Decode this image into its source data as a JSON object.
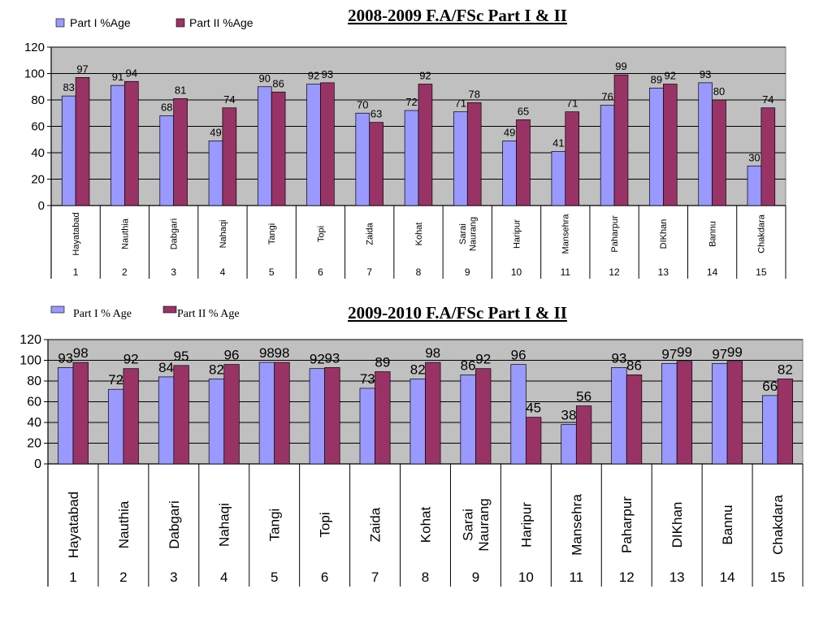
{
  "chart_data": [
    {
      "type": "bar",
      "title": "2008-2009  F.A/FSc Part I & II",
      "categories": [
        "Hayatabad",
        "Nauthia",
        "Dabgari",
        "Nahaqi",
        "Tangi",
        "Topi",
        "Zaida",
        "Kohat",
        "Sarai Naurang",
        "Haripur",
        "Mansehra",
        "Paharpur",
        "DIKhan",
        "Bannu",
        "Chakdara"
      ],
      "category_index": [
        "1",
        "2",
        "3",
        "4",
        "5",
        "6",
        "7",
        "8",
        "9",
        "10",
        "11",
        "12",
        "13",
        "14",
        "15"
      ],
      "series": [
        {
          "name": "Part I %Age",
          "color": "#9999ff",
          "values": [
            83,
            91,
            68,
            49,
            90,
            92,
            70,
            72,
            71,
            49,
            41,
            76,
            89,
            93,
            30
          ],
          "labels": [
            "83",
            "91",
            "68",
            "49",
            "90",
            "92",
            "70",
            "72",
            "71",
            "49",
            "41",
            "76",
            "89",
            "93",
            "30"
          ]
        },
        {
          "name": "Part II %Age",
          "color": "#993366",
          "values": [
            97,
            94,
            81,
            74,
            86,
            93,
            63,
            92,
            78,
            65,
            71,
            99,
            92,
            80,
            74
          ],
          "labels": [
            "97",
            "94",
            "81",
            "74",
            "86",
            "93",
            "63",
            "92",
            "78",
            "65",
            "71",
            "99",
            "92",
            "80",
            "74"
          ]
        }
      ],
      "ylim": [
        0,
        120
      ],
      "yticks": [
        "0",
        "20",
        "40",
        "60",
        "80",
        "100",
        "120"
      ],
      "grid": true,
      "legend": "top-left",
      "plot_background": "#c0c0c0"
    },
    {
      "type": "bar",
      "title": "2009-2010  F.A/FSc Part I & II",
      "categories": [
        "Hayatabad",
        "Nauthia",
        "Dabgari",
        "Nahaqi",
        "Tangi",
        "Topi",
        "Zaida",
        "Kohat",
        "Sarai Naurang",
        "Haripur",
        "Mansehra",
        "Paharpur",
        "DIKhan",
        "Bannu",
        "Chakdara"
      ],
      "category_index": [
        "1",
        "2",
        "3",
        "4",
        "5",
        "6",
        "7",
        "8",
        "9",
        "10",
        "11",
        "12",
        "13",
        "14",
        "15"
      ],
      "series": [
        {
          "name": "Part I % Age",
          "color": "#9999ff",
          "values": [
            93,
            72,
            84,
            82,
            98,
            92,
            73,
            82,
            86,
            96,
            38,
            93,
            97,
            97,
            66
          ],
          "labels": [
            "93",
            "72",
            "84",
            "82",
            "98",
            "92",
            "73",
            "82",
            "86",
            "96",
            "38",
            "93",
            "97",
            "97",
            "66"
          ]
        },
        {
          "name": "Part II % Age",
          "color": "#993366",
          "values": [
            98,
            92,
            95,
            96,
            98,
            93,
            89,
            98,
            92,
            45,
            56,
            86,
            99,
            99,
            82
          ],
          "labels": [
            "98",
            "92",
            "95",
            "96",
            "98",
            "93",
            "89",
            "98",
            "92",
            "45",
            "56",
            "86",
            "99",
            "99",
            "82"
          ]
        }
      ],
      "ylim": [
        0,
        120
      ],
      "yticks": [
        "0",
        "20",
        "40",
        "60",
        "80",
        "100",
        "120"
      ],
      "grid": true,
      "legend": "top-left",
      "plot_background": "#c0c0c0"
    }
  ]
}
